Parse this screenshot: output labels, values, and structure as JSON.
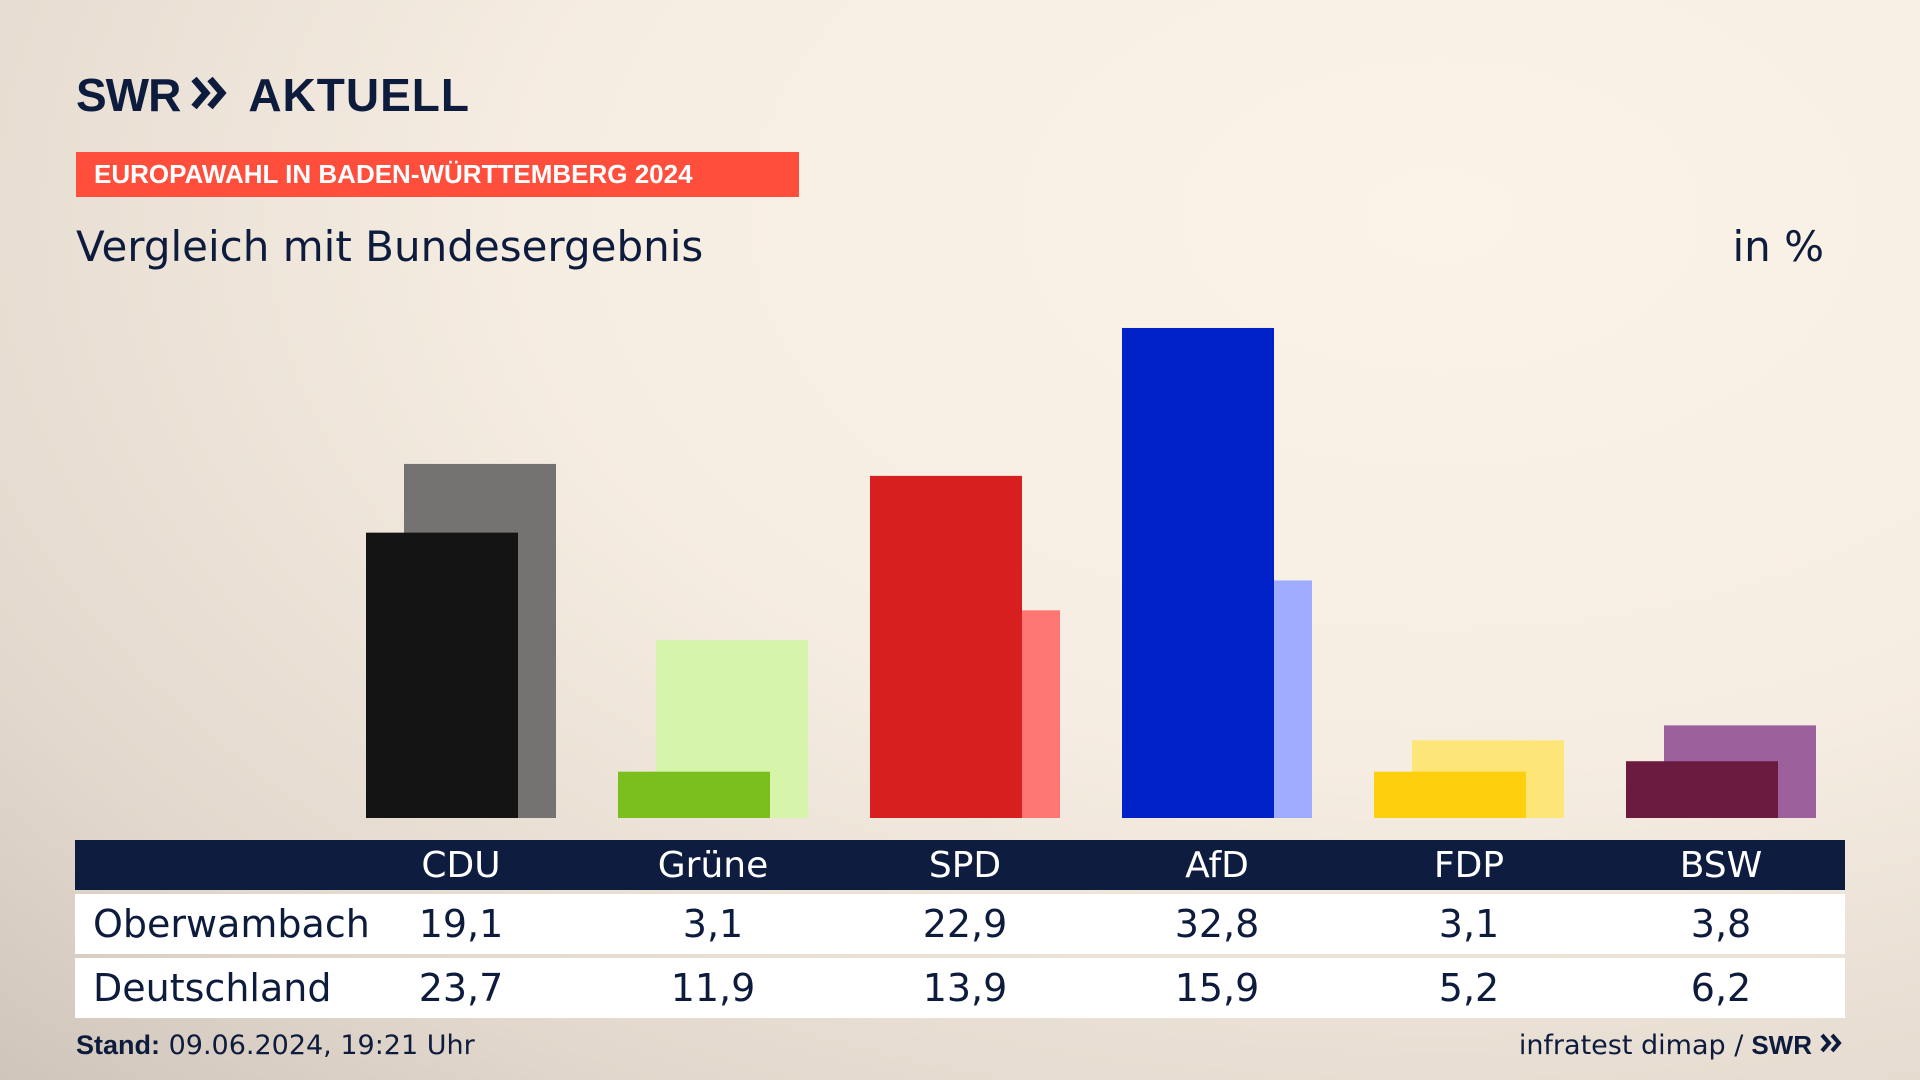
{
  "brand": {
    "swr": "SWR",
    "aktuell": "AKTUELL"
  },
  "kicker": "EUROPAWAHL IN BADEN-WÜRTTEMBERG 2024",
  "title": "Vergleich mit Bundesergebnis",
  "unit": "in %",
  "footer": {
    "stand_label": "Stand:",
    "stand_value": "09.06.2024, 19:21 Uhr",
    "source": "infratest dimap /",
    "logo": "SWR"
  },
  "colors": {
    "navy": "#0e1c3f",
    "kicker": "#ff4e3c"
  },
  "chart_data": {
    "type": "bar",
    "categories": [
      "CDU",
      "Grüne",
      "SPD",
      "AfD",
      "FDP",
      "BSW"
    ],
    "series": [
      {
        "name": "Oberwambach",
        "values": [
          19.1,
          3.1,
          22.9,
          32.8,
          3.1,
          3.8
        ],
        "colors": [
          "#141414",
          "#7bbf1e",
          "#d71f1f",
          "#0021c8",
          "#fdcf0c",
          "#6b1a40"
        ]
      },
      {
        "name": "Deutschland",
        "values": [
          23.7,
          11.9,
          13.9,
          15.9,
          5.2,
          6.2
        ],
        "colors": [
          "#747372",
          "#d6f5aa",
          "#ff7672",
          "#9fabfe",
          "#fde578",
          "#9c609c"
        ]
      }
    ],
    "value_labels": [
      [
        "19,1",
        "3,1",
        "22,9",
        "32,8",
        "3,1",
        "3,8"
      ],
      [
        "23,7",
        "11,9",
        "13,9",
        "15,9",
        "5,2",
        "6,2"
      ]
    ],
    "ylabel": "in %",
    "grid": false,
    "legend": "table-below"
  }
}
